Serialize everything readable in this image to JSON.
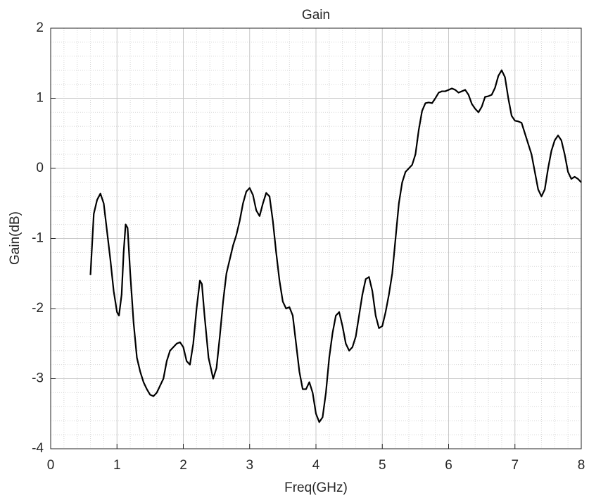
{
  "chart_data": {
    "type": "line",
    "title": "Gain",
    "x_label": "Freq(GHz)",
    "y_label": "Gain(dB)",
    "x": [
      0.6,
      0.65,
      0.7,
      0.75,
      0.8,
      0.85,
      0.9,
      0.95,
      1.0,
      1.03,
      1.07,
      1.1,
      1.13,
      1.16,
      1.2,
      1.25,
      1.3,
      1.35,
      1.4,
      1.45,
      1.5,
      1.55,
      1.6,
      1.65,
      1.7,
      1.75,
      1.8,
      1.85,
      1.9,
      1.95,
      2.0,
      2.05,
      2.1,
      2.15,
      2.2,
      2.25,
      2.28,
      2.32,
      2.38,
      2.45,
      2.5,
      2.55,
      2.6,
      2.65,
      2.7,
      2.75,
      2.8,
      2.85,
      2.9,
      2.95,
      3.0,
      3.05,
      3.1,
      3.15,
      3.2,
      3.25,
      3.3,
      3.35,
      3.4,
      3.45,
      3.5,
      3.55,
      3.6,
      3.65,
      3.7,
      3.75,
      3.8,
      3.85,
      3.9,
      3.95,
      4.0,
      4.05,
      4.1,
      4.15,
      4.2,
      4.25,
      4.3,
      4.35,
      4.4,
      4.45,
      4.5,
      4.55,
      4.6,
      4.65,
      4.7,
      4.75,
      4.8,
      4.85,
      4.9,
      4.95,
      5.0,
      5.05,
      5.1,
      5.15,
      5.2,
      5.25,
      5.3,
      5.35,
      5.4,
      5.45,
      5.5,
      5.55,
      5.6,
      5.65,
      5.7,
      5.75,
      5.8,
      5.85,
      5.9,
      5.95,
      6.0,
      6.05,
      6.1,
      6.15,
      6.2,
      6.25,
      6.3,
      6.35,
      6.4,
      6.45,
      6.5,
      6.55,
      6.6,
      6.65,
      6.7,
      6.75,
      6.8,
      6.85,
      6.9,
      6.95,
      7.0,
      7.05,
      7.1,
      7.15,
      7.2,
      7.25,
      7.3,
      7.35,
      7.4,
      7.45,
      7.5,
      7.55,
      7.6,
      7.65,
      7.7,
      7.75,
      7.8,
      7.85,
      7.9,
      7.95,
      8.0
    ],
    "series": [
      {
        "color": "#000000",
        "values": [
          -1.52,
          -0.65,
          -0.45,
          -0.36,
          -0.5,
          -0.9,
          -1.3,
          -1.75,
          -2.05,
          -2.1,
          -1.8,
          -1.2,
          -0.8,
          -0.85,
          -1.5,
          -2.2,
          -2.7,
          -2.9,
          -3.05,
          -3.15,
          -3.23,
          -3.25,
          -3.2,
          -3.1,
          -3.0,
          -2.75,
          -2.6,
          -2.55,
          -2.5,
          -2.48,
          -2.55,
          -2.75,
          -2.8,
          -2.5,
          -2.0,
          -1.6,
          -1.65,
          -2.1,
          -2.7,
          -3.0,
          -2.85,
          -2.4,
          -1.9,
          -1.5,
          -1.3,
          -1.1,
          -0.95,
          -0.75,
          -0.5,
          -0.33,
          -0.28,
          -0.38,
          -0.6,
          -0.68,
          -0.5,
          -0.35,
          -0.4,
          -0.75,
          -1.2,
          -1.6,
          -1.9,
          -2.0,
          -1.98,
          -2.1,
          -2.5,
          -2.9,
          -3.15,
          -3.15,
          -3.05,
          -3.2,
          -3.5,
          -3.62,
          -3.55,
          -3.2,
          -2.7,
          -2.35,
          -2.1,
          -2.05,
          -2.25,
          -2.5,
          -2.6,
          -2.55,
          -2.4,
          -2.1,
          -1.8,
          -1.58,
          -1.55,
          -1.75,
          -2.1,
          -2.28,
          -2.25,
          -2.05,
          -1.8,
          -1.5,
          -1.0,
          -0.5,
          -0.2,
          -0.05,
          0.0,
          0.05,
          0.2,
          0.55,
          0.82,
          0.93,
          0.94,
          0.93,
          1.0,
          1.08,
          1.1,
          1.1,
          1.12,
          1.14,
          1.12,
          1.08,
          1.1,
          1.12,
          1.05,
          0.92,
          0.85,
          0.8,
          0.88,
          1.02,
          1.03,
          1.05,
          1.15,
          1.32,
          1.4,
          1.3,
          1.0,
          0.75,
          0.68,
          0.67,
          0.65,
          0.5,
          0.35,
          0.2,
          -0.05,
          -0.3,
          -0.4,
          -0.3,
          0.0,
          0.25,
          0.4,
          0.47,
          0.4,
          0.2,
          -0.05,
          -0.15,
          -0.12,
          -0.15,
          -0.2
        ]
      }
    ],
    "xlim": [
      0,
      8
    ],
    "xticks": [
      0,
      1,
      2,
      3,
      4,
      5,
      6,
      7,
      8
    ],
    "ylim": [
      -4,
      2
    ],
    "yticks": [
      -4,
      -3,
      -2,
      -1,
      0,
      1,
      2
    ],
    "grid": true,
    "minor_grid": true
  }
}
